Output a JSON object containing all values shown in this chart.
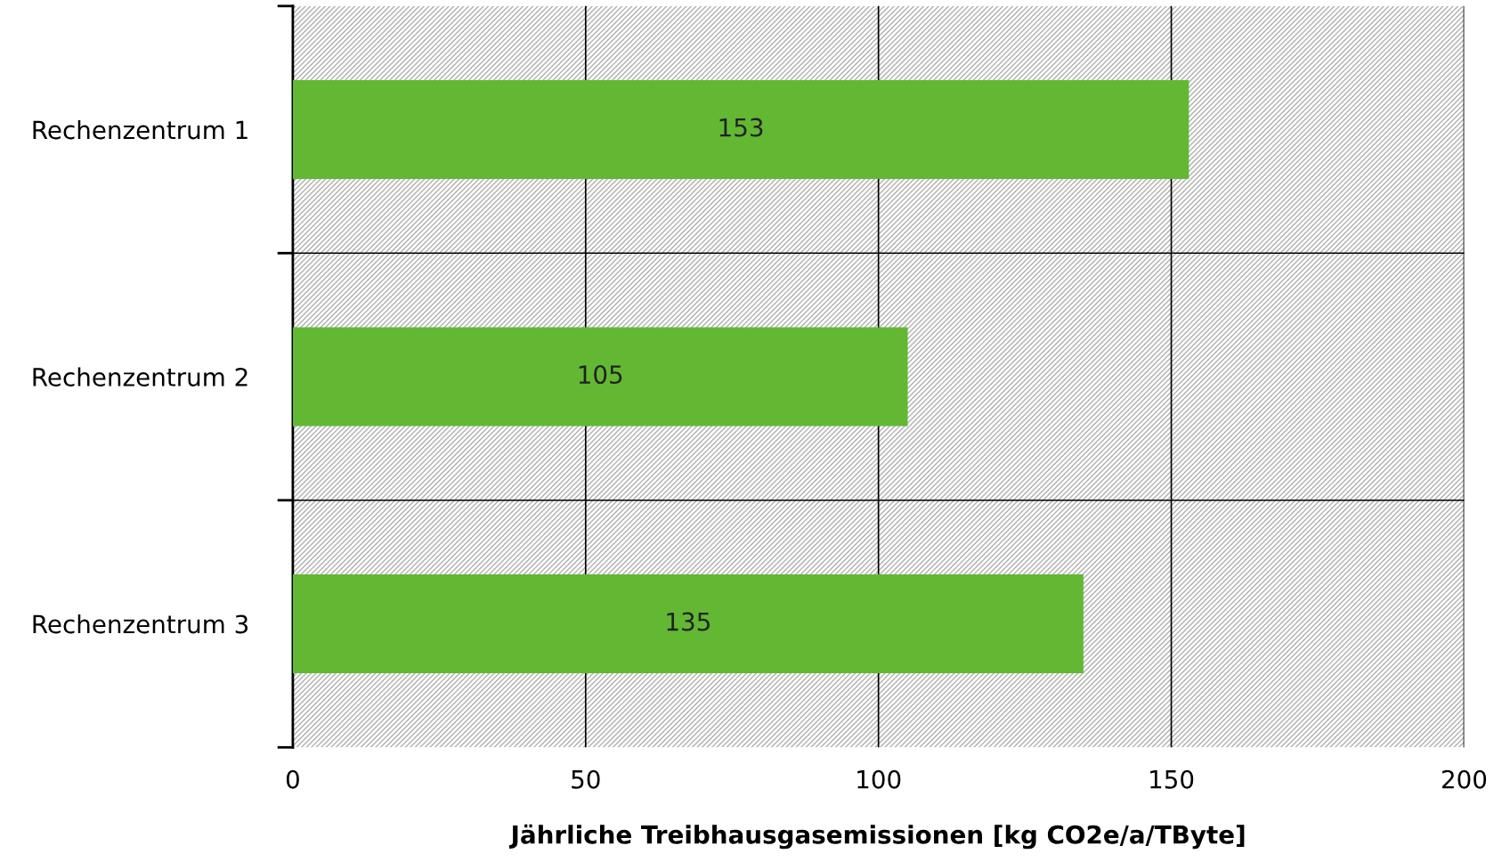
{
  "chart_data": {
    "type": "bar",
    "orientation": "horizontal",
    "categories": [
      "Rechenzentrum 1",
      "Rechenzentrum 2",
      "Rechenzentrum 3"
    ],
    "values": [
      153,
      105,
      135
    ],
    "color": "#62b833",
    "xlim": [
      0,
      200
    ],
    "xticks": [
      0,
      50,
      100,
      150,
      200
    ],
    "xlabel": "Jährliche Treibhausgasemissionen [kg CO2e/a/TByte]",
    "data_labels": true,
    "grid": true
  }
}
